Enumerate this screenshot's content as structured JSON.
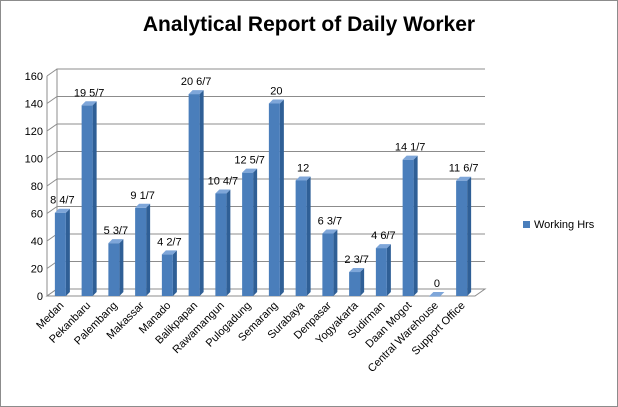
{
  "chart_data": {
    "type": "bar",
    "title": "Analytical Report of Daily Worker",
    "categories": [
      "Medan",
      "Pekanbaru",
      "Palembang",
      "Makassar",
      "Manado",
      "Balikpapan",
      "Rawamangun",
      "Pulogadung",
      "Semarang",
      "Surabaya",
      "Denpasar",
      "Yogyakarta",
      "Sudirman",
      "Daan Mogot",
      "Central Warehouse",
      "Support Office"
    ],
    "series": [
      {
        "name": "Working Hrs",
        "values": [
          60.57,
          138.71,
          38.43,
          64.14,
          30.29,
          146.86,
          74.57,
          89.71,
          140,
          84,
          45.43,
          17.43,
          34.86,
          99.14,
          0,
          83.86
        ],
        "data_labels": [
          "8 4/7",
          "19 5/7",
          "5 3/7",
          "9 1/7",
          "4 2/7",
          "20 6/7",
          "10 4/7",
          "12 5/7",
          "20",
          "12",
          "6 3/7",
          "2 3/7",
          "4 6/7",
          "14 1/7",
          "0",
          "11 6/7"
        ]
      }
    ],
    "ylim": [
      0,
      160
    ],
    "yticks": [
      "0",
      "20",
      "40",
      "60",
      "80",
      "100",
      "120",
      "140",
      "160"
    ],
    "gridlines": true,
    "legend_position": "right",
    "colors": {
      "bar": "#4a7ebb",
      "bar_dark": "#2f5f96",
      "bar_top": "#7ea6d9",
      "grid": "#8c8c8c",
      "wall": "#ffffff"
    }
  }
}
